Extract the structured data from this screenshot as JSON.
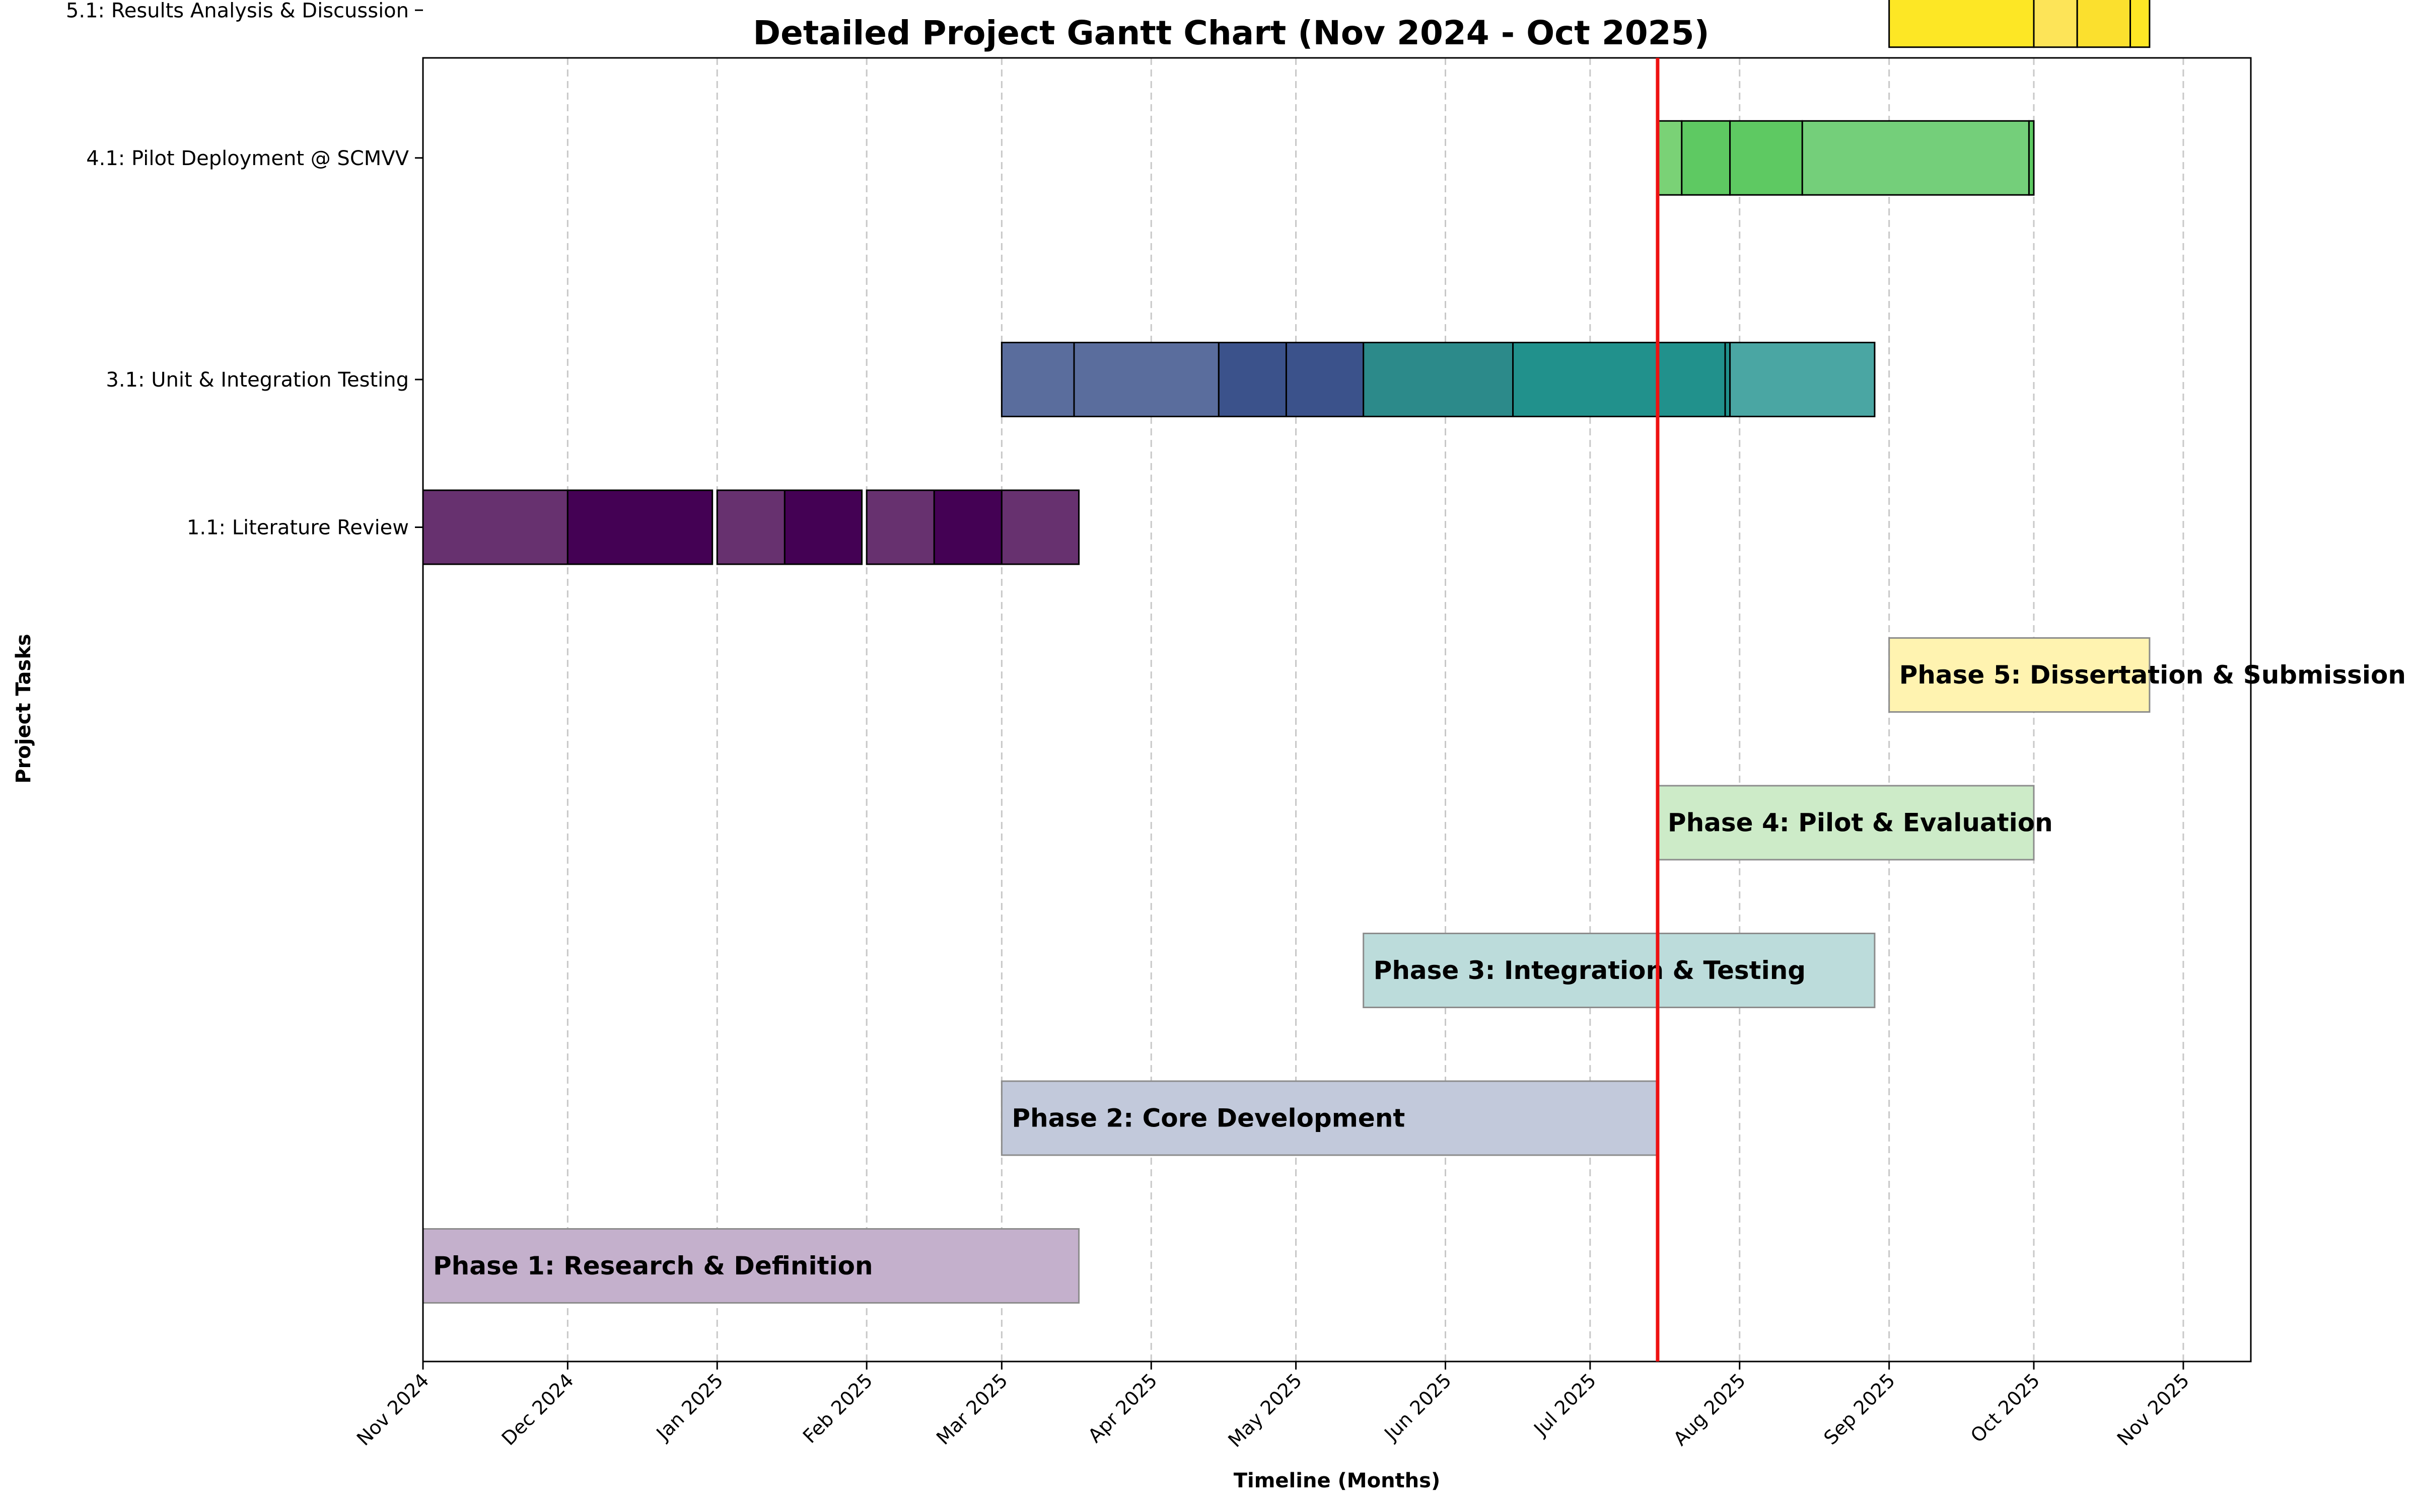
{
  "chart_data": {
    "type": "gantt",
    "title": "Detailed Project Gantt Chart (Nov 2024 - Oct 2025)",
    "xlabel": "Timeline (Months)",
    "ylabel": "Project Tasks",
    "xlim": [
      "2024-11-01",
      "2025-11-15"
    ],
    "grid": "vertical dashed",
    "today_line": "2025-07-15",
    "month_ticks": [
      "Nov 2024",
      "Dec 2024",
      "Jan 2025",
      "Feb 2025",
      "Mar 2025",
      "Apr 2025",
      "May 2025",
      "Jun 2025",
      "Jul 2025",
      "Aug 2025",
      "Sep 2025",
      "Oct 2025",
      "Nov 2025"
    ],
    "task_labels": [
      "5.1: Results Analysis & Discussion",
      "4.1: Pilot Deployment @ SCMVV",
      "3.1: Unit & Integration Testing",
      "1.1: Literature Review"
    ],
    "task_rows": [
      {
        "label": "5.1: Results Analysis & Discussion",
        "segments": [
          {
            "start": "2025-09-01",
            "end": "2025-10-01",
            "color": "#fde725"
          },
          {
            "start": "2025-10-01",
            "end": "2025-10-10",
            "color": "#fde458"
          },
          {
            "start": "2025-10-10",
            "end": "2025-10-21",
            "color": "#fbe02e"
          },
          {
            "start": "2025-10-21",
            "end": "2025-10-25",
            "color": "#fde725"
          }
        ]
      },
      {
        "label": "4.1: Pilot Deployment @ SCMVV",
        "segments": [
          {
            "start": "2025-07-15",
            "end": "2025-07-20",
            "color": "#7ad276"
          },
          {
            "start": "2025-07-20",
            "end": "2025-07-30",
            "color": "#5ec962"
          },
          {
            "start": "2025-07-30",
            "end": "2025-08-14",
            "color": "#5ec962"
          },
          {
            "start": "2025-08-14",
            "end": "2025-09-30",
            "color": "#74cf7a"
          },
          {
            "start": "2025-09-30",
            "end": "2025-10-01",
            "color": "#5ec962"
          }
        ]
      },
      {
        "label": "3.1: Unit & Integration Testing",
        "segments": [
          {
            "start": "2025-03-01",
            "end": "2025-03-16",
            "color": "#5a6d9d"
          },
          {
            "start": "2025-03-16",
            "end": "2025-04-15",
            "color": "#5a6d9d"
          },
          {
            "start": "2025-04-15",
            "end": "2025-04-29",
            "color": "#3b528b"
          },
          {
            "start": "2025-04-29",
            "end": "2025-05-15",
            "color": "#3b528b"
          },
          {
            "start": "2025-05-15",
            "end": "2025-06-15",
            "color": "#2c8a8a"
          },
          {
            "start": "2025-06-15",
            "end": "2025-07-29",
            "color": "#21918c"
          },
          {
            "start": "2025-07-29",
            "end": "2025-07-30",
            "color": "#21918c"
          },
          {
            "start": "2025-07-30",
            "end": "2025-08-29",
            "color": "#4aa6a3"
          }
        ]
      },
      {
        "label": "1.1: Literature Review",
        "segments": [
          {
            "start": "2024-11-01",
            "end": "2024-12-01",
            "color": "#67316f"
          },
          {
            "start": "2024-12-01",
            "end": "2024-12-31",
            "color": "#440154"
          },
          {
            "start": "2025-01-01",
            "end": "2025-01-15",
            "color": "#67316f"
          },
          {
            "start": "2025-01-15",
            "end": "2025-01-31",
            "color": "#440154"
          },
          {
            "start": "2025-02-01",
            "end": "2025-02-15",
            "color": "#67316f"
          },
          {
            "start": "2025-02-15",
            "end": "2025-03-01",
            "color": "#440154"
          },
          {
            "start": "2025-03-01",
            "end": "2025-03-17",
            "color": "#67316f"
          }
        ]
      }
    ],
    "phases": [
      {
        "label": "Phase 5: Dissertation & Submission",
        "start": "2025-09-01",
        "end": "2025-10-25",
        "color": "#fff3b0"
      },
      {
        "label": "Phase 4: Pilot & Evaluation",
        "start": "2025-07-15",
        "end": "2025-10-01",
        "color": "#cdebc8"
      },
      {
        "label": "Phase 3: Integration & Testing",
        "start": "2025-05-15",
        "end": "2025-08-29",
        "color": "#bcdcdb"
      },
      {
        "label": "Phase 2: Core Development",
        "start": "2025-03-01",
        "end": "2025-07-15",
        "color": "#c2c9db"
      },
      {
        "label": "Phase 1: Research & Definition",
        "start": "2024-11-01",
        "end": "2025-03-17",
        "color": "#c4b0cc"
      }
    ]
  }
}
